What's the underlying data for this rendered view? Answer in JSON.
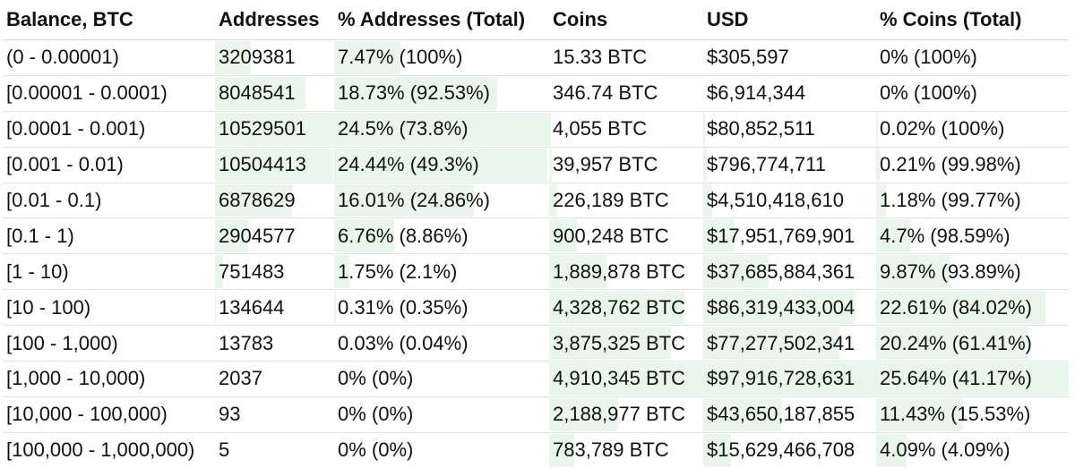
{
  "headers": [
    "Balance, BTC",
    "Addresses",
    "% Addresses (Total)",
    "Coins",
    "USD",
    "% Coins (Total)"
  ],
  "rows": [
    {
      "balance": "(0 - 0.00001)",
      "addresses": "3209381",
      "pct_addresses": "7.47% (100%)",
      "coins": "15.33 BTC",
      "usd": "$305,597",
      "pct_coins": "0% (100%)",
      "addr_frac": 0.3,
      "pctaddr_frac": 0.31,
      "coins_frac": 0.0,
      "usd_frac": 0.0,
      "pctcoins_frac": 0.0
    },
    {
      "balance": "[0.00001 - 0.0001)",
      "addresses": "8048541",
      "pct_addresses": "18.73% (92.53%)",
      "coins": "346.74 BTC",
      "usd": "$6,914,344",
      "pct_coins": "0% (100%)",
      "addr_frac": 0.76,
      "pctaddr_frac": 0.76,
      "coins_frac": 0.0,
      "usd_frac": 0.0,
      "pctcoins_frac": 0.0
    },
    {
      "balance": "[0.0001 - 0.001)",
      "addresses": "10529501",
      "pct_addresses": "24.5% (73.8%)",
      "coins": "4,055 BTC",
      "usd": "$80,852,511",
      "pct_coins": "0.02% (100%)",
      "addr_frac": 1.0,
      "pctaddr_frac": 1.0,
      "coins_frac": 0.01,
      "usd_frac": 0.01,
      "pctcoins_frac": 0.01
    },
    {
      "balance": "[0.001 - 0.01)",
      "addresses": "10504413",
      "pct_addresses": "24.44% (49.3%)",
      "coins": "39,957 BTC",
      "usd": "$796,774,711",
      "pct_coins": "0.21% (99.98%)",
      "addr_frac": 0.99,
      "pctaddr_frac": 0.99,
      "coins_frac": 0.02,
      "usd_frac": 0.02,
      "pctcoins_frac": 0.02
    },
    {
      "balance": "[0.01 - 0.1)",
      "addresses": "6878629",
      "pct_addresses": "16.01% (24.86%)",
      "coins": "226,189 BTC",
      "usd": "$4,510,418,610",
      "pct_coins": "1.18% (99.77%)",
      "addr_frac": 0.65,
      "pctaddr_frac": 0.65,
      "coins_frac": 0.05,
      "usd_frac": 0.05,
      "pctcoins_frac": 0.05
    },
    {
      "balance": "[0.1 - 1)",
      "addresses": "2904577",
      "pct_addresses": "6.76% (8.86%)",
      "coins": "900,248 BTC",
      "usd": "$17,951,769,901",
      "pct_coins": "4.7% (98.59%)",
      "addr_frac": 0.28,
      "pctaddr_frac": 0.28,
      "coins_frac": 0.18,
      "usd_frac": 0.18,
      "pctcoins_frac": 0.18
    },
    {
      "balance": "[1 - 10)",
      "addresses": "751483",
      "pct_addresses": "1.75% (2.1%)",
      "coins": "1,889,878 BTC",
      "usd": "$37,685,884,361",
      "pct_coins": "9.87% (93.89%)",
      "addr_frac": 0.07,
      "pctaddr_frac": 0.07,
      "coins_frac": 0.38,
      "usd_frac": 0.38,
      "pctcoins_frac": 0.38
    },
    {
      "balance": "[10 - 100)",
      "addresses": "134644",
      "pct_addresses": "0.31% (0.35%)",
      "coins": "4,328,762 BTC",
      "usd": "$86,319,433,004",
      "pct_coins": "22.61% (84.02%)",
      "addr_frac": 0.01,
      "pctaddr_frac": 0.01,
      "coins_frac": 0.88,
      "usd_frac": 0.88,
      "pctcoins_frac": 0.88
    },
    {
      "balance": "[100 - 1,000)",
      "addresses": "13783",
      "pct_addresses": "0.03% (0.04%)",
      "coins": "3,875,325 BTC",
      "usd": "$77,277,502,341",
      "pct_coins": "20.24% (61.41%)",
      "addr_frac": 0.0,
      "pctaddr_frac": 0.0,
      "coins_frac": 0.79,
      "usd_frac": 0.79,
      "pctcoins_frac": 0.79
    },
    {
      "balance": "[1,000 - 10,000)",
      "addresses": "2037",
      "pct_addresses": "0% (0%)",
      "coins": "4,910,345 BTC",
      "usd": "$97,916,728,631",
      "pct_coins": "25.64% (41.17%)",
      "addr_frac": 0.0,
      "pctaddr_frac": 0.0,
      "coins_frac": 1.0,
      "usd_frac": 1.0,
      "pctcoins_frac": 1.0
    },
    {
      "balance": "[10,000 - 100,000)",
      "addresses": "93",
      "pct_addresses": "0% (0%)",
      "coins": "2,188,977 BTC",
      "usd": "$43,650,187,855",
      "pct_coins": "11.43% (15.53%)",
      "addr_frac": 0.0,
      "pctaddr_frac": 0.0,
      "coins_frac": 0.45,
      "usd_frac": 0.45,
      "pctcoins_frac": 0.45
    },
    {
      "balance": "[100,000 - 1,000,000)",
      "addresses": "5",
      "pct_addresses": "0% (0%)",
      "coins": "783,789 BTC",
      "usd": "$15,629,466,708",
      "pct_coins": "4.09% (4.09%)",
      "addr_frac": 0.0,
      "pctaddr_frac": 0.0,
      "coins_frac": 0.16,
      "usd_frac": 0.16,
      "pctcoins_frac": 0.16
    }
  ],
  "bar_color": "#e9f6ec"
}
